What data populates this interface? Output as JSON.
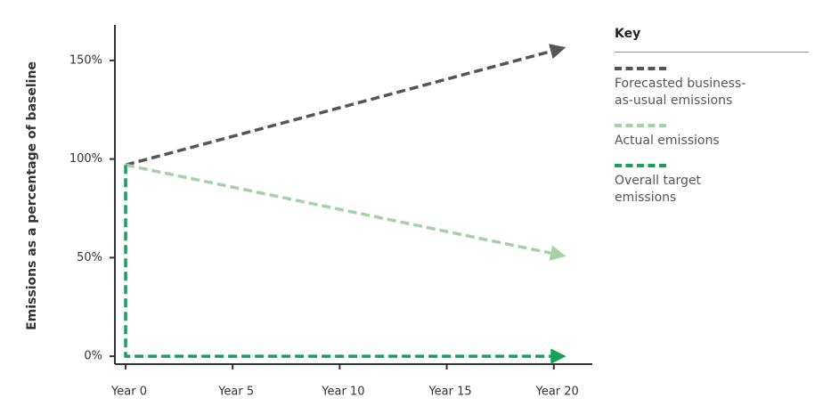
{
  "chart_data": {
    "type": "line",
    "y_label": "Emissions as a percentage of baseline",
    "legend_title": "Key",
    "xlim": [
      -0.5,
      21.8
    ],
    "xticks": [
      {
        "value": 0,
        "label": "Year 0"
      },
      {
        "value": 5,
        "label": "Year 5"
      },
      {
        "value": 10,
        "label": "Year 10"
      },
      {
        "value": 15,
        "label": "Year 15"
      },
      {
        "value": 20,
        "label": "Year 20"
      }
    ],
    "ylim": [
      -4,
      168
    ],
    "yticks": [
      {
        "value": 0,
        "label": "0%"
      },
      {
        "value": 50,
        "label": "50%"
      },
      {
        "value": 100,
        "label": "100%"
      },
      {
        "value": 150,
        "label": "150%"
      }
    ],
    "series": [
      {
        "name": "Forecasted business-as-usual emissions",
        "color": "#555555",
        "x": [
          0,
          20
        ],
        "values": [
          97,
          155
        ]
      },
      {
        "name": "Actual emissions",
        "color": "#a3d2a3",
        "x": [
          0,
          20
        ],
        "values": [
          97,
          52
        ]
      },
      {
        "name": "Overall target emissions",
        "color": "#16a05a",
        "x": [
          0,
          0,
          20
        ],
        "values": [
          97,
          0,
          0
        ]
      }
    ]
  }
}
